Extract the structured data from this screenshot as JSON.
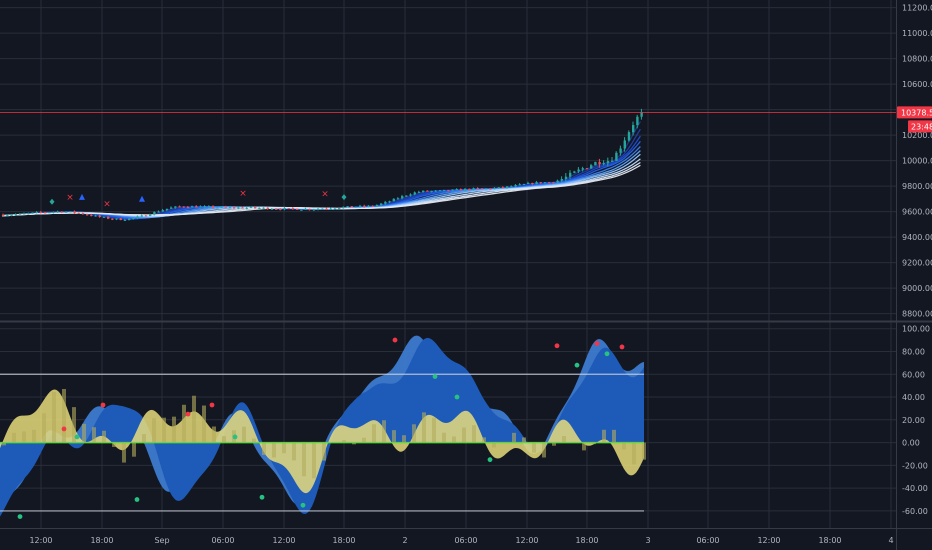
{
  "colors": {
    "background": "#131722",
    "grid": "#2a2e39",
    "separator": "#363a45",
    "axis_text": "#b2b5be",
    "candle_up": "#26a69a",
    "candle_down": "#ef5350",
    "price_line": "#f23645",
    "ribbon": [
      "#1e3a8a",
      "#1e40af",
      "#1d4ed8",
      "#2563eb",
      "#3b82f6",
      "#60a5fa",
      "#93c5fd",
      "#bfdbfe",
      "#dbeafe",
      "#e5e7eb"
    ],
    "osc_blue": "#1e5bb8",
    "osc_blue_light": "#3f7fd8",
    "osc_yellow": "#e8dc7a",
    "osc_yellow_dark": "#b3ab5c",
    "osc_level": "#d1d4dc",
    "osc_zero": "#5fdc3c",
    "signal_green": "#26c281",
    "signal_red": "#f23645",
    "signal_blue": "#2962ff"
  },
  "price_axis": {
    "ticks": [
      "11200.00",
      "11000.00",
      "10800.00",
      "10600.00",
      "10400.00",
      "10200.00",
      "10000.00",
      "9800.00",
      "9600.00",
      "9400.00",
      "9200.00",
      "9000.00",
      "8800.00"
    ],
    "current_price_label": "10378.50",
    "countdown_label": "23:48"
  },
  "osc_axis": {
    "ticks": [
      "100.00",
      "80.00",
      "60.00",
      "40.00",
      "20.00",
      "0.00",
      "-20.00",
      "-40.00",
      "-60.00"
    ]
  },
  "time_axis": {
    "labels": [
      "12:00",
      "18:00",
      "Sep",
      "06:00",
      "12:00",
      "18:00",
      "2",
      "06:00",
      "12:00",
      "18:00",
      "3",
      "06:00",
      "12:00",
      "18:00",
      "4"
    ]
  },
  "chart_data": [
    {
      "type": "candlestick",
      "title": "",
      "xlabel": "",
      "ylabel": "",
      "ylim": [
        8750,
        11260
      ],
      "x": [
        "Aug 31 07:00",
        "Aug 31 13:00",
        "Aug 31 19:00",
        "Sep 1 01:00",
        "Sep 1 07:00",
        "Sep 1 13:00",
        "Sep 1 19:00",
        "Sep 2 01:00",
        "Sep 2 07:00",
        "Sep 2 13:00",
        "Sep 2 19:00",
        "Sep 3 00:00"
      ],
      "close": [
        9575,
        9600,
        9540,
        9640,
        9630,
        9620,
        9640,
        9760,
        9780,
        9830,
        10000,
        10378.5
      ],
      "last_price": 10378.5,
      "grid": true,
      "legend": "none"
    },
    {
      "type": "area",
      "title": "",
      "xlabel": "",
      "ylabel": "",
      "ylim": [
        -75,
        105
      ],
      "levels": [
        60,
        0,
        -60
      ],
      "x": [
        "Aug 31 07:00",
        "Aug 31 13:00",
        "Aug 31 19:00",
        "Sep 1 01:00",
        "Sep 1 07:00",
        "Sep 1 13:00",
        "Sep 1 19:00",
        "Sep 2 01:00",
        "Sep 2 07:00",
        "Sep 2 13:00",
        "Sep 2 19:00",
        "Sep 3 00:00"
      ],
      "series": [
        {
          "values": [
            -65,
            5,
            30,
            -40,
            20,
            -50,
            40,
            88,
            40,
            -5,
            85,
            65
          ]
        },
        {
          "values": [
            -5,
            40,
            -10,
            35,
            5,
            -25,
            10,
            18,
            5,
            -5,
            5,
            -15
          ]
        }
      ],
      "grid": true,
      "legend": "none"
    }
  ]
}
